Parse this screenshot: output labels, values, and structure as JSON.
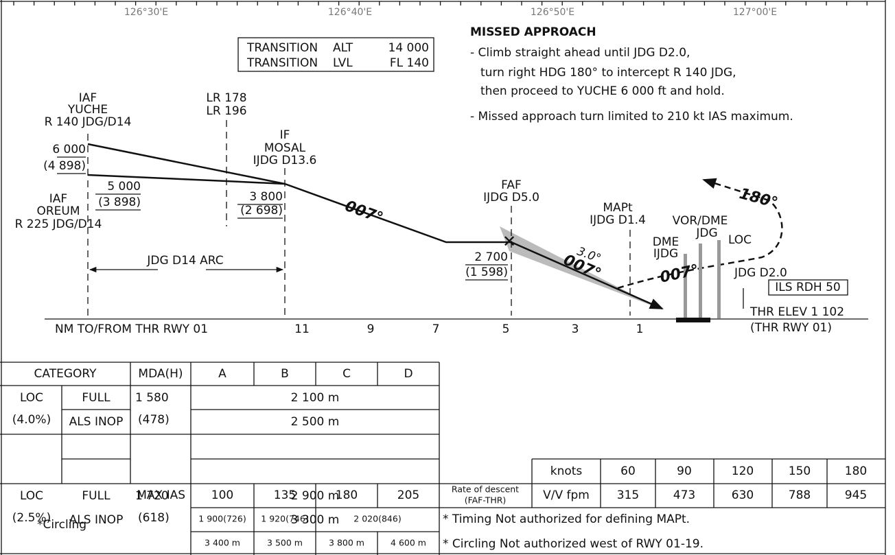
{
  "longitudes": [
    "126°30'E",
    "126°40'E",
    "126°50'E",
    "127°00'E"
  ],
  "transition": {
    "rows": [
      [
        "TRANSITION",
        "ALT",
        "14 000"
      ],
      [
        "TRANSITION",
        "LVL",
        "FL 140"
      ]
    ]
  },
  "missed_approach": {
    "title": "MISSED APPROACH",
    "lines": [
      "- Climb straight ahead until JDG D2.0,",
      "turn right HDG 180° to intercept R 140 JDG,",
      "then proceed to YUCHE 6 000 ft and hold.",
      "- Missed approach turn limited to 210 kt IAS maximum."
    ]
  },
  "profile": {
    "fixes": [
      {
        "lines": [
          "IAF",
          "YUCHE",
          "R 140 JDG/D14"
        ]
      },
      {
        "lines": [
          "IAF",
          "OREUM",
          "R 225 JDG/D14"
        ]
      },
      {
        "lines": [
          "LR 178",
          "LR 196"
        ]
      },
      {
        "lines": [
          "IF",
          "MOSAL",
          "IJDG D13.6"
        ]
      },
      {
        "lines": [
          "FAF",
          "IJDG D5.0"
        ]
      },
      {
        "lines": [
          "MAPt",
          "IJDG D1.4"
        ]
      },
      {
        "lines": [
          "JDG D2.0"
        ]
      }
    ],
    "altitudes": [
      [
        "6 000",
        "(4 898)"
      ],
      [
        "5 000",
        "(3 898)"
      ],
      [
        "3 800",
        "(2 698)"
      ],
      [
        "2 700",
        "(1 598)"
      ]
    ],
    "courses": [
      "007°",
      "007°",
      "007°",
      "180°"
    ],
    "glide_path": "3.0°",
    "arc": "JDG D14 ARC",
    "navaids": [
      "DME",
      "IJDG",
      "VOR/DME",
      "JDG",
      "LOC"
    ],
    "rdh": "ILS RDH 50",
    "thr": [
      "THR ELEV 1 102",
      "(THR RWY 01)"
    ],
    "distance_label": "NM TO/FROM THR RWY 01",
    "distances": [
      "11",
      "9",
      "7",
      "5",
      "3",
      "1"
    ]
  },
  "minima": {
    "header": [
      "CATEGORY",
      "MDA(H)",
      "A",
      "B",
      "C",
      "D"
    ],
    "rows": [
      {
        "approach": [
          "LOC",
          "(4.0%)"
        ],
        "lighting": [
          "FULL",
          "ALS INOP"
        ],
        "mda": [
          "1 580",
          "(478)"
        ],
        "visibility": [
          "2 100 m",
          "2 500 m"
        ]
      },
      {
        "approach": [
          "LOC",
          "(2.5%)"
        ],
        "lighting": [
          "FULL",
          "ALS INOP"
        ],
        "mda": [
          "1 720",
          "(618)"
        ],
        "visibility": [
          "2 900 m",
          "3 300 m"
        ]
      }
    ],
    "max_ias_label": "MAX IAS",
    "max_ias": [
      "100",
      "135",
      "180",
      "205"
    ],
    "circling_label": "*Circling",
    "circling_mda": [
      "1 900(726)",
      "1 920(746)",
      "2 020(846)"
    ],
    "circling_vis": [
      "3 400 m",
      "3 500 m",
      "3 800 m",
      "4 600 m"
    ]
  },
  "descent": {
    "label": [
      "Rate of descent",
      "(FAF-THR)"
    ],
    "speed_label": "knots",
    "rate_label": "V/V fpm",
    "speeds": [
      "60",
      "90",
      "120",
      "150",
      "180"
    ],
    "rates": [
      "315",
      "473",
      "630",
      "788",
      "945"
    ]
  },
  "notes": [
    "* Timing Not authorized for defining MAPt.",
    "* Circling Not authorized west of RWY 01-19."
  ]
}
